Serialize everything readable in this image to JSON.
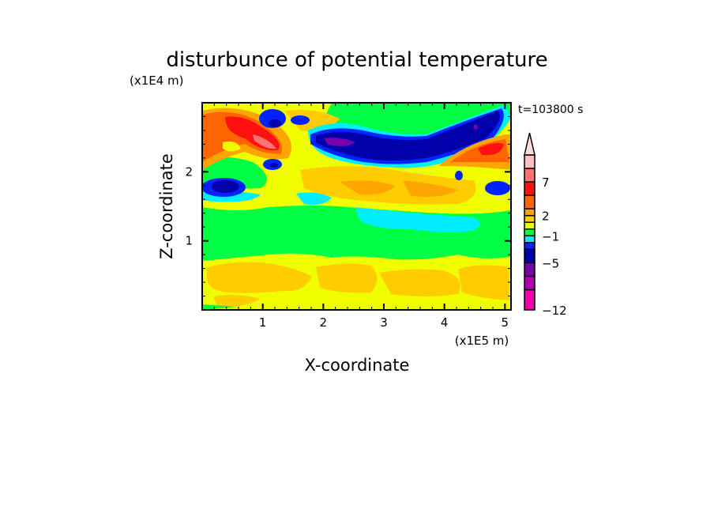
{
  "chart_data": {
    "type": "heatmap",
    "title": "disturbunce of potential temperature",
    "xlabel": "X-coordinate",
    "ylabel": "Z-coordinate",
    "x_units": "(x1E5 m)",
    "y_units": "(x1E4 m)",
    "time_label": "t=103800 s",
    "xlim": [
      0,
      5.1
    ],
    "ylim": [
      0,
      3.0
    ],
    "x_ticks": [
      1,
      2,
      3,
      4,
      5
    ],
    "y_ticks": [
      1,
      2
    ],
    "x_tick_labels": [
      "1",
      "2",
      "3",
      "4",
      "5"
    ],
    "y_tick_labels": [
      "1",
      "2"
    ],
    "colorbar": {
      "levels": [
        -12,
        -9,
        -7,
        -5,
        -3,
        -2,
        -1,
        0,
        1,
        2,
        3,
        5,
        7,
        9,
        11
      ],
      "colors": [
        "#ee00aa",
        "#b000b0",
        "#7700aa",
        "#0000aa",
        "#0022ff",
        "#00eeff",
        "#00ff44",
        "#f0ff00",
        "#ffcc00",
        "#ffa500",
        "#ff6600",
        "#ff1111",
        "#ff7373",
        "#ffbfbf"
      ],
      "extend_color": "#ffdddd",
      "labels": [
        "-12",
        "-5",
        "-1",
        "2",
        "7"
      ],
      "label_values": [
        -12,
        -5,
        -1,
        2,
        7
      ]
    }
  }
}
